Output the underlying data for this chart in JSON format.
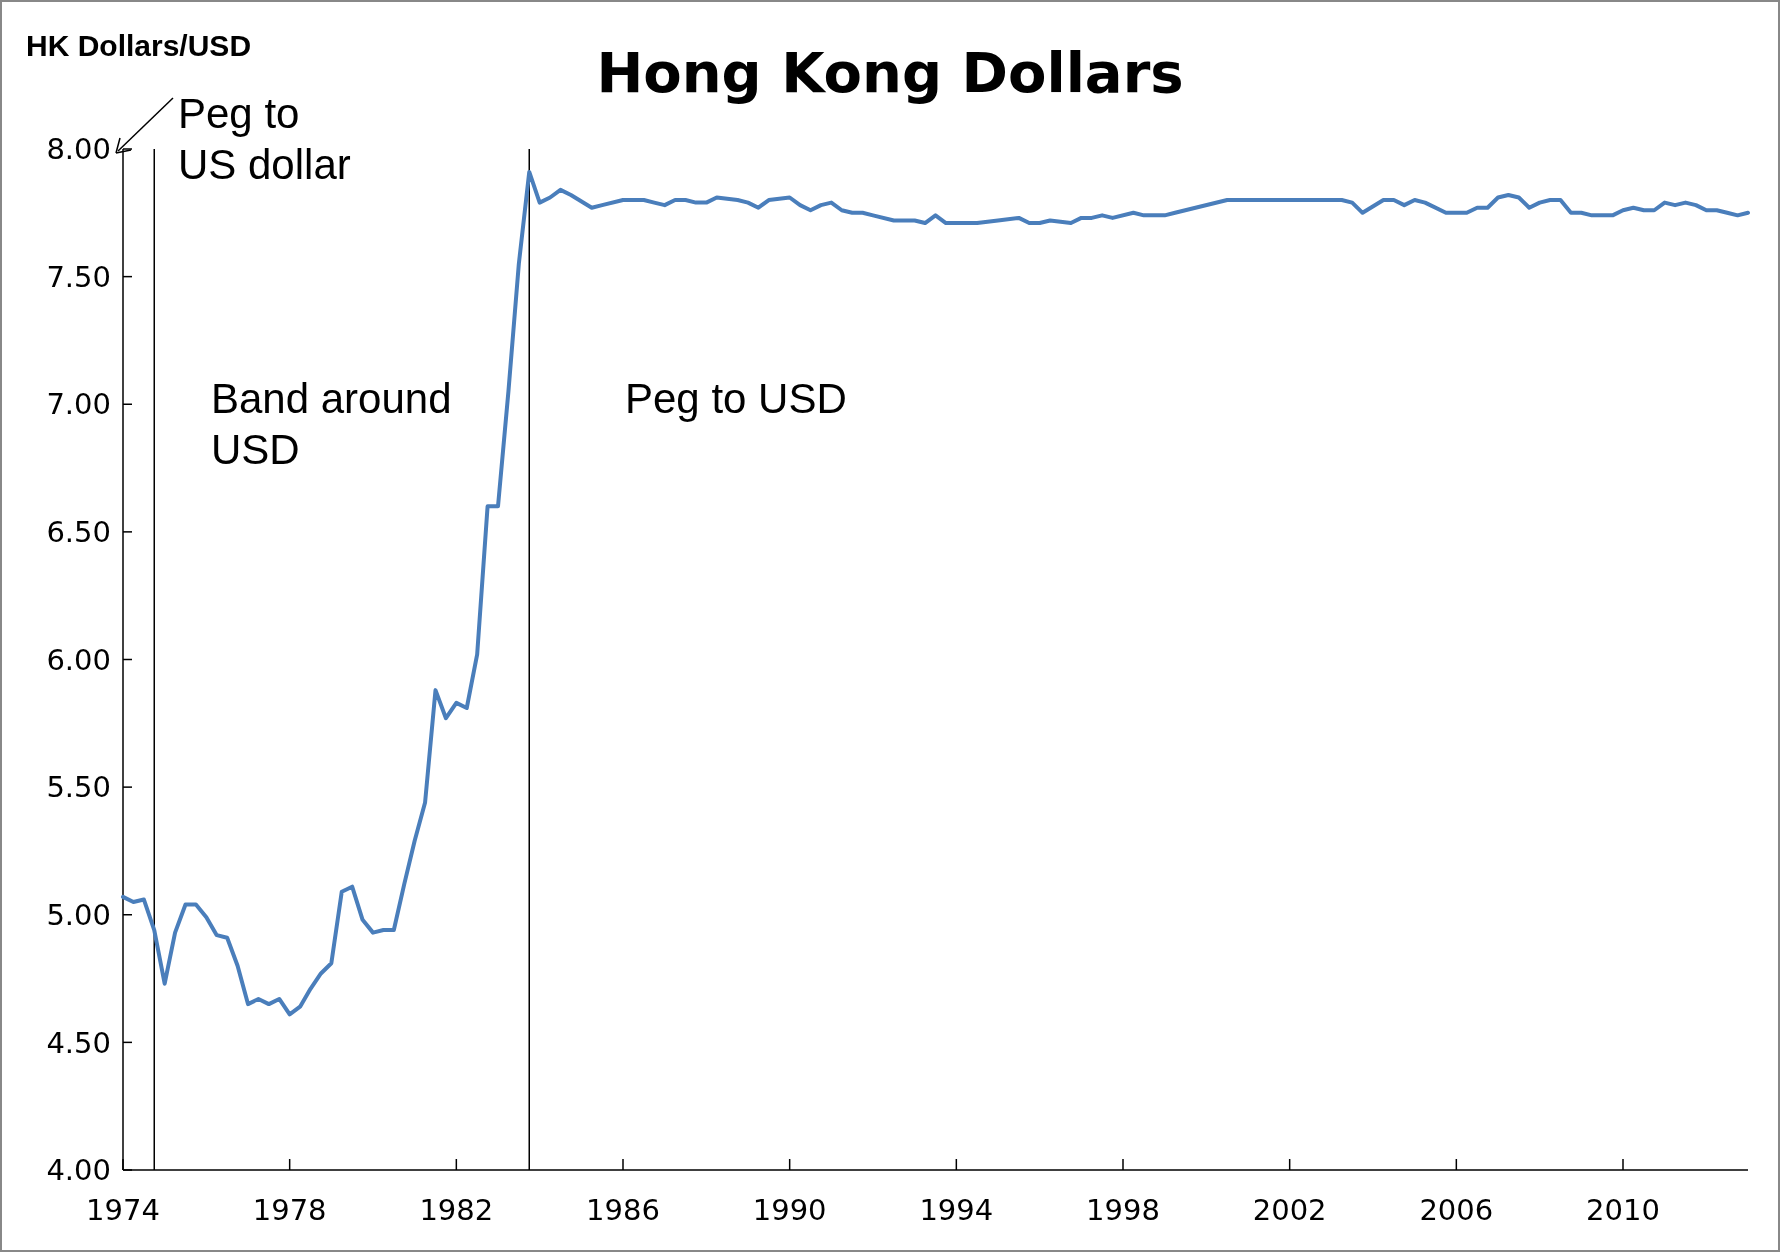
{
  "chart_data": {
    "type": "line",
    "title": "Hong Kong Dollars",
    "ylabel": "HK Dollars/USD",
    "annotations": [
      "Peg to\nUS dollar",
      "Band around\nUSD",
      "Peg to USD"
    ],
    "x": [
      1974,
      1974.25,
      1974.5,
      1974.75,
      1975,
      1975.25,
      1975.5,
      1975.75,
      1976,
      1976.25,
      1976.5,
      1976.75,
      1977,
      1977.25,
      1977.5,
      1977.75,
      1978,
      1978.25,
      1978.5,
      1978.75,
      1979,
      1979.25,
      1979.5,
      1979.75,
      1980,
      1980.25,
      1980.5,
      1980.75,
      1981,
      1981.25,
      1981.5,
      1981.75,
      1982,
      1982.25,
      1982.5,
      1982.75,
      1983,
      1983.25,
      1983.5,
      1983.75,
      1984,
      1984.25,
      1984.5,
      1984.75,
      1985.25,
      1985.5,
      1986,
      1986.5,
      1986.75,
      1987,
      1987.25,
      1987.5,
      1987.75,
      1988,
      1988.25,
      1988.75,
      1989,
      1989.25,
      1989.5,
      1990,
      1990.25,
      1990.5,
      1990.75,
      1991,
      1991.25,
      1991.5,
      1991.75,
      1992,
      1992.5,
      1992.75,
      1993,
      1993.25,
      1993.5,
      1993.75,
      1994.5,
      1995,
      1995.5,
      1995.75,
      1996,
      1996.25,
      1996.75,
      1997,
      1997.25,
      1997.5,
      1997.75,
      1998.25,
      1998.5,
      1999,
      1999.25,
      2000.5,
      2003.25,
      2003.5,
      2003.75,
      2004.25,
      2004.5,
      2004.75,
      2005,
      2005.25,
      2005.75,
      2006,
      2006.25,
      2006.5,
      2006.75,
      2007,
      2007.25,
      2007.5,
      2007.75,
      2008,
      2008.25,
      2008.5,
      2008.75,
      2009,
      2009.25,
      2009.75,
      2010,
      2010.25,
      2010.5,
      2010.75,
      2011,
      2011.25,
      2011.5,
      2011.75,
      2012,
      2012.25,
      2012.5,
      2012.75,
      2013
    ],
    "series": [
      {
        "color": "#4a7ebb",
        "values": [
          5.07,
          5.05,
          5.06,
          4.94,
          4.73,
          4.93,
          5.04,
          5.04,
          4.99,
          4.92,
          4.91,
          4.8,
          4.65,
          4.67,
          4.65,
          4.67,
          4.61,
          4.64,
          4.71,
          4.77,
          4.81,
          5.09,
          5.11,
          4.98,
          4.93,
          4.94,
          4.94,
          5.12,
          5.29,
          5.44,
          5.88,
          5.77,
          5.83,
          5.81,
          6.02,
          6.6,
          6.6,
          7.05,
          7.55,
          7.91,
          7.79,
          7.81,
          7.84,
          7.82,
          7.77,
          7.78,
          7.8,
          7.8,
          7.79,
          7.78,
          7.8,
          7.8,
          7.79,
          7.79,
          7.81,
          7.8,
          7.79,
          7.77,
          7.8,
          7.81,
          7.78,
          7.76,
          7.78,
          7.79,
          7.76,
          7.75,
          7.75,
          7.74,
          7.72,
          7.72,
          7.72,
          7.71,
          7.74,
          7.71,
          7.71,
          7.72,
          7.73,
          7.71,
          7.71,
          7.72,
          7.71,
          7.73,
          7.73,
          7.74,
          7.73,
          7.75,
          7.74,
          7.74,
          7.75,
          7.8,
          7.8,
          7.79,
          7.75,
          7.8,
          7.8,
          7.78,
          7.8,
          7.79,
          7.75,
          7.75,
          7.75,
          7.77,
          7.77,
          7.81,
          7.82,
          7.81,
          7.77,
          7.79,
          7.8,
          7.8,
          7.75,
          7.75,
          7.74,
          7.74,
          7.76,
          7.77,
          7.76,
          7.76,
          7.79,
          7.78,
          7.79,
          7.78,
          7.76,
          7.76,
          7.75,
          7.74,
          7.75
        ]
      }
    ],
    "xlim": [
      1974,
      2013
    ],
    "xticks": [
      1974,
      1978,
      1982,
      1986,
      1990,
      1994,
      1998,
      2002,
      2006,
      2010
    ],
    "ylim": [
      4,
      8
    ],
    "yticks": [
      {
        "value": 4,
        "label": "4.00"
      },
      {
        "value": 4.5,
        "label": "4.50"
      },
      {
        "value": 5,
        "label": "5.00"
      },
      {
        "value": 5.5,
        "label": "5.50"
      },
      {
        "value": 6,
        "label": "6.00"
      },
      {
        "value": 6.5,
        "label": "6.50"
      },
      {
        "value": 7,
        "label": "7.00"
      },
      {
        "value": 7.5,
        "label": "7.50"
      },
      {
        "value": 8,
        "label": "8.00"
      }
    ],
    "ref_lines": [
      {
        "axis": "x",
        "value": 1974.75,
        "color": "#000000"
      },
      {
        "axis": "x",
        "value": 1983.75,
        "color": "#000000"
      }
    ],
    "grid": false
  }
}
